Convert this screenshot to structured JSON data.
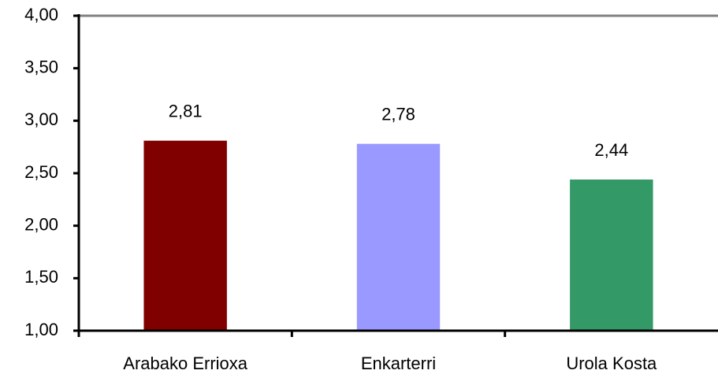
{
  "chart_data": {
    "type": "bar",
    "categories": [
      "Arabako Errioxa",
      "Enkarterri",
      "Urola Kosta"
    ],
    "values": [
      2.81,
      2.78,
      2.44
    ],
    "value_labels": [
      "2,81",
      "2,78",
      "2,44"
    ],
    "colors": [
      "#800000",
      "#9999ff",
      "#339966"
    ],
    "ylim": [
      1,
      4
    ],
    "yticks": [
      {
        "value": 1,
        "label": "1,00"
      },
      {
        "value": 1.5,
        "label": "1,50"
      },
      {
        "value": 2,
        "label": "2,00"
      },
      {
        "value": 2.5,
        "label": "2,50"
      },
      {
        "value": 3,
        "label": "3,00"
      },
      {
        "value": 3.5,
        "label": "3,50"
      },
      {
        "value": 4,
        "label": "4,00"
      }
    ],
    "grid": false
  }
}
